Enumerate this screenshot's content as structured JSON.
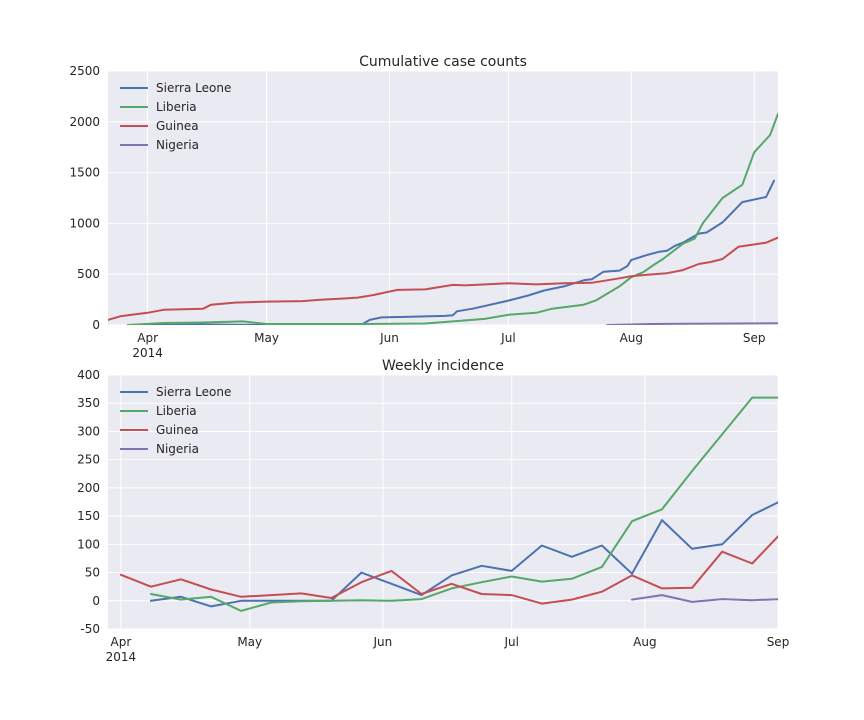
{
  "chart_data": [
    {
      "type": "line",
      "title": "Cumulative case counts",
      "xlabel": "",
      "ylabel": "",
      "xlim": [
        "2014-03-22",
        "2014-09-07"
      ],
      "ylim": [
        0,
        2500
      ],
      "y_ticks": [
        0,
        500,
        1000,
        1500,
        2000,
        2500
      ],
      "x_ticks": [
        {
          "date": "2014-04-01",
          "label": "Apr",
          "sublabel": "2014"
        },
        {
          "date": "2014-05-01",
          "label": "May"
        },
        {
          "date": "2014-06-01",
          "label": "Jun"
        },
        {
          "date": "2014-07-01",
          "label": "Jul"
        },
        {
          "date": "2014-08-01",
          "label": "Aug"
        },
        {
          "date": "2014-09-01",
          "label": "Sep"
        }
      ],
      "grid": true,
      "legend": "top-left",
      "series": [
        {
          "name": "Sierra Leone",
          "color": "#4c72b0",
          "points": [
            [
              "2014-03-27",
              0
            ],
            [
              "2014-04-15",
              5
            ],
            [
              "2014-04-30",
              0
            ],
            [
              "2014-05-25",
              5
            ],
            [
              "2014-05-27",
              50
            ],
            [
              "2014-05-30",
              75
            ],
            [
              "2014-06-05",
              80
            ],
            [
              "2014-06-15",
              90
            ],
            [
              "2014-06-17",
              95
            ],
            [
              "2014-06-18",
              135
            ],
            [
              "2014-06-22",
              160
            ],
            [
              "2014-07-01",
              240
            ],
            [
              "2014-07-06",
              290
            ],
            [
              "2014-07-10",
              340
            ],
            [
              "2014-07-15",
              380
            ],
            [
              "2014-07-20",
              440
            ],
            [
              "2014-07-22",
              450
            ],
            [
              "2014-07-25",
              525
            ],
            [
              "2014-07-29",
              535
            ],
            [
              "2014-07-31",
              580
            ],
            [
              "2014-08-01",
              640
            ],
            [
              "2014-08-05",
              690
            ],
            [
              "2014-08-08",
              720
            ],
            [
              "2014-08-10",
              730
            ],
            [
              "2014-08-12",
              780
            ],
            [
              "2014-08-14",
              810
            ],
            [
              "2014-08-18",
              900
            ],
            [
              "2014-08-20",
              910
            ],
            [
              "2014-08-24",
              1010
            ],
            [
              "2014-08-29",
              1210
            ],
            [
              "2014-09-04",
              1260
            ],
            [
              "2014-09-06",
              1420
            ]
          ]
        },
        {
          "name": "Liberia",
          "color": "#55a868",
          "points": [
            [
              "2014-03-27",
              0
            ],
            [
              "2014-04-05",
              20
            ],
            [
              "2014-04-15",
              25
            ],
            [
              "2014-04-25",
              35
            ],
            [
              "2014-05-01",
              10
            ],
            [
              "2014-05-25",
              10
            ],
            [
              "2014-06-10",
              15
            ],
            [
              "2014-06-15",
              30
            ],
            [
              "2014-06-25",
              60
            ],
            [
              "2014-07-01",
              100
            ],
            [
              "2014-07-08",
              120
            ],
            [
              "2014-07-12",
              160
            ],
            [
              "2014-07-20",
              200
            ],
            [
              "2014-07-23",
              240
            ],
            [
              "2014-07-29",
              380
            ],
            [
              "2014-08-01",
              470
            ],
            [
              "2014-08-04",
              520
            ],
            [
              "2014-08-07",
              600
            ],
            [
              "2014-08-09",
              650
            ],
            [
              "2014-08-14",
              800
            ],
            [
              "2014-08-17",
              850
            ],
            [
              "2014-08-19",
              1000
            ],
            [
              "2014-08-24",
              1250
            ],
            [
              "2014-08-29",
              1380
            ],
            [
              "2014-09-01",
              1700
            ],
            [
              "2014-09-05",
              1870
            ],
            [
              "2014-09-07",
              2080
            ]
          ]
        },
        {
          "name": "Guinea",
          "color": "#c44e52",
          "points": [
            [
              "2014-03-22",
              50
            ],
            [
              "2014-03-25",
              85
            ],
            [
              "2014-03-27",
              95
            ],
            [
              "2014-04-01",
              120
            ],
            [
              "2014-04-05",
              150
            ],
            [
              "2014-04-15",
              160
            ],
            [
              "2014-04-17",
              200
            ],
            [
              "2014-04-23",
              220
            ],
            [
              "2014-05-01",
              230
            ],
            [
              "2014-05-10",
              235
            ],
            [
              "2014-05-15",
              250
            ],
            [
              "2014-05-20",
              260
            ],
            [
              "2014-05-24",
              270
            ],
            [
              "2014-05-28",
              295
            ],
            [
              "2014-06-03",
              345
            ],
            [
              "2014-06-10",
              350
            ],
            [
              "2014-06-17",
              395
            ],
            [
              "2014-06-20",
              390
            ],
            [
              "2014-07-01",
              410
            ],
            [
              "2014-07-08",
              400
            ],
            [
              "2014-07-15",
              410
            ],
            [
              "2014-07-22",
              415
            ],
            [
              "2014-07-29",
              460
            ],
            [
              "2014-08-01",
              480
            ],
            [
              "2014-08-05",
              495
            ],
            [
              "2014-08-10",
              510
            ],
            [
              "2014-08-14",
              540
            ],
            [
              "2014-08-18",
              600
            ],
            [
              "2014-08-21",
              620
            ],
            [
              "2014-08-24",
              650
            ],
            [
              "2014-08-28",
              770
            ],
            [
              "2014-09-04",
              810
            ],
            [
              "2014-09-07",
              860
            ]
          ]
        },
        {
          "name": "Nigeria",
          "color": "#8172b2",
          "points": [
            [
              "2014-07-26",
              0
            ],
            [
              "2014-08-01",
              5
            ],
            [
              "2014-08-06",
              10
            ],
            [
              "2014-08-15",
              12
            ],
            [
              "2014-08-28",
              15
            ],
            [
              "2014-09-07",
              18
            ]
          ]
        }
      ]
    },
    {
      "type": "line",
      "title": "Weekly incidence",
      "xlabel": "",
      "ylabel": "",
      "xlim": [
        "2014-03-29",
        "2014-09-01"
      ],
      "ylim": [
        -50,
        400
      ],
      "y_ticks": [
        -50,
        0,
        50,
        100,
        150,
        200,
        250,
        300,
        350,
        400
      ],
      "x_ticks": [
        {
          "date": "2014-04-01",
          "label": "Apr",
          "sublabel": "2014"
        },
        {
          "date": "2014-05-01",
          "label": "May"
        },
        {
          "date": "2014-06-01",
          "label": "Jun"
        },
        {
          "date": "2014-07-01",
          "label": "Jul"
        },
        {
          "date": "2014-08-01",
          "label": "Aug"
        },
        {
          "date": "2014-09-01",
          "label": "Sep"
        }
      ],
      "grid": true,
      "legend": "top-left",
      "series": [
        {
          "name": "Sierra Leone",
          "color": "#4c72b0",
          "points": [
            [
              "2014-04-08",
              0
            ],
            [
              "2014-04-15",
              7
            ],
            [
              "2014-04-22",
              -10
            ],
            [
              "2014-04-29",
              0
            ],
            [
              "2014-05-06",
              0
            ],
            [
              "2014-05-13",
              0
            ],
            [
              "2014-05-20",
              0
            ],
            [
              "2014-05-27",
              50
            ],
            [
              "2014-06-03",
              30
            ],
            [
              "2014-06-10",
              10
            ],
            [
              "2014-06-17",
              45
            ],
            [
              "2014-06-24",
              62
            ],
            [
              "2014-07-01",
              53
            ],
            [
              "2014-07-08",
              98
            ],
            [
              "2014-07-15",
              78
            ],
            [
              "2014-07-22",
              98
            ],
            [
              "2014-07-29",
              48
            ],
            [
              "2014-08-05",
              143
            ],
            [
              "2014-08-12",
              92
            ],
            [
              "2014-08-19",
              100
            ],
            [
              "2014-08-26",
              152
            ],
            [
              "2014-09-02",
              178
            ]
          ]
        },
        {
          "name": "Liberia",
          "color": "#55a868",
          "points": [
            [
              "2014-04-08",
              12
            ],
            [
              "2014-04-15",
              2
            ],
            [
              "2014-04-22",
              7
            ],
            [
              "2014-04-29",
              -18
            ],
            [
              "2014-05-06",
              -3
            ],
            [
              "2014-05-13",
              -1
            ],
            [
              "2014-05-20",
              0
            ],
            [
              "2014-05-27",
              1
            ],
            [
              "2014-06-03",
              0
            ],
            [
              "2014-06-10",
              3
            ],
            [
              "2014-06-17",
              22
            ],
            [
              "2014-06-24",
              33
            ],
            [
              "2014-07-01",
              43
            ],
            [
              "2014-07-08",
              34
            ],
            [
              "2014-07-15",
              39
            ],
            [
              "2014-07-22",
              60
            ],
            [
              "2014-07-29",
              141
            ],
            [
              "2014-08-05",
              162
            ],
            [
              "2014-08-12",
              230
            ],
            [
              "2014-08-19",
              295
            ],
            [
              "2014-08-26",
              360
            ],
            [
              "2014-09-02",
              360
            ]
          ]
        },
        {
          "name": "Guinea",
          "color": "#c44e52",
          "points": [
            [
              "2014-04-01",
              46
            ],
            [
              "2014-04-08",
              25
            ],
            [
              "2014-04-15",
              38
            ],
            [
              "2014-04-22",
              20
            ],
            [
              "2014-04-29",
              7
            ],
            [
              "2014-05-06",
              10
            ],
            [
              "2014-05-13",
              13
            ],
            [
              "2014-05-20",
              5
            ],
            [
              "2014-05-27",
              33
            ],
            [
              "2014-06-03",
              53
            ],
            [
              "2014-06-10",
              12
            ],
            [
              "2014-06-17",
              30
            ],
            [
              "2014-06-24",
              12
            ],
            [
              "2014-07-01",
              10
            ],
            [
              "2014-07-08",
              -5
            ],
            [
              "2014-07-15",
              2
            ],
            [
              "2014-07-22",
              16
            ],
            [
              "2014-07-29",
              45
            ],
            [
              "2014-08-05",
              22
            ],
            [
              "2014-08-12",
              23
            ],
            [
              "2014-08-19",
              87
            ],
            [
              "2014-08-26",
              66
            ],
            [
              "2014-09-02",
              122
            ]
          ]
        },
        {
          "name": "Nigeria",
          "color": "#8172b2",
          "points": [
            [
              "2014-07-29",
              2
            ],
            [
              "2014-08-05",
              10
            ],
            [
              "2014-08-12",
              -2
            ],
            [
              "2014-08-19",
              3
            ],
            [
              "2014-08-26",
              1
            ],
            [
              "2014-09-02",
              3
            ]
          ]
        }
      ]
    }
  ]
}
